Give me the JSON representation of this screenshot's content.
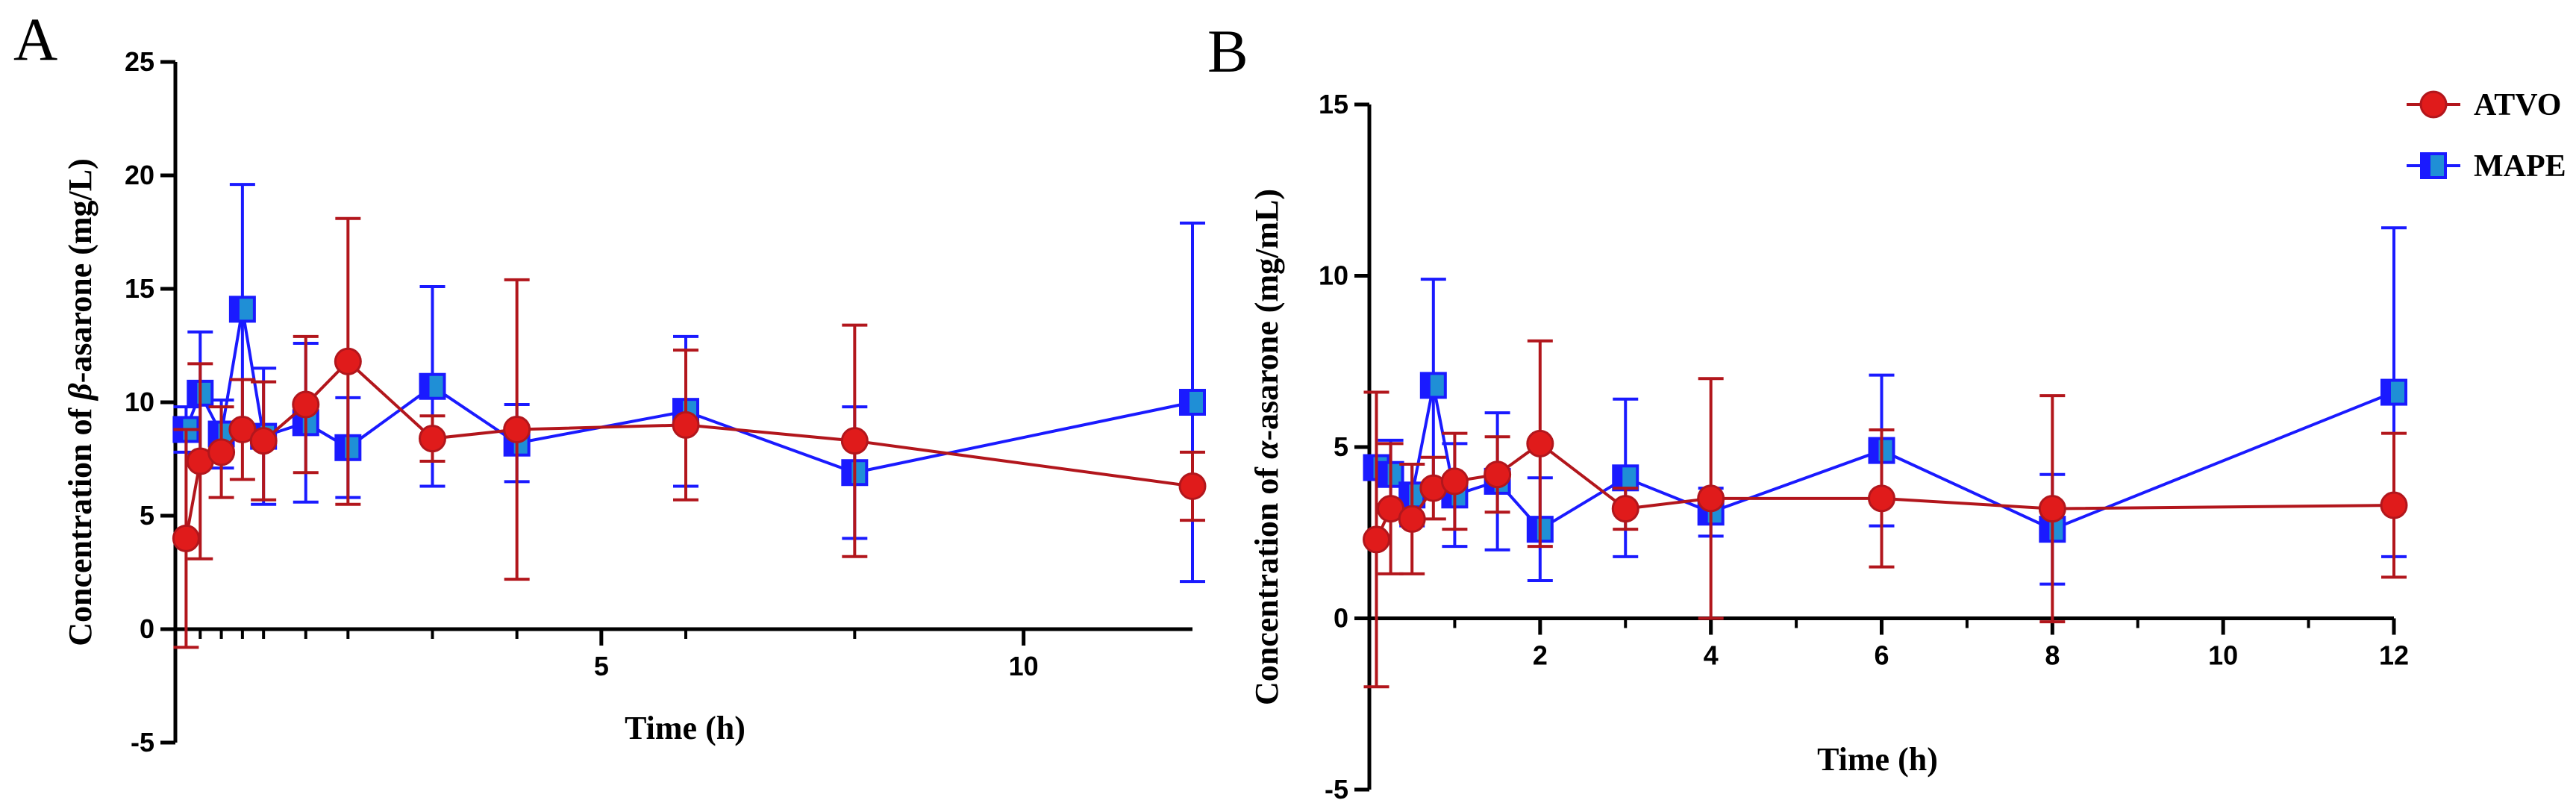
{
  "colors": {
    "atvo_line": "#b2161c",
    "atvo_marker": "#e01b1b",
    "mape_line": "#1a1aff",
    "mape_fill": "#1f8fd6",
    "axis": "#000000"
  },
  "legend": {
    "entries": [
      "ATVO",
      "MAPE"
    ]
  },
  "chart_data": [
    {
      "type": "line",
      "panel_label": "A",
      "title": "",
      "xlabel": "Time (h)",
      "ylabel_prefix": "Concentration of ",
      "ylabel_symbol": "β",
      "ylabel_suffix": "-asarone (mg/L)",
      "xlim": [
        0,
        12
      ],
      "ylim": [
        -5,
        25
      ],
      "xticks": [
        5,
        10
      ],
      "xtick_labels": [
        "5",
        "10"
      ],
      "yticks": [
        -5,
        0,
        5,
        10,
        15,
        20,
        25
      ],
      "ytick_labels": [
        "-5",
        "0",
        "5",
        "10",
        "15",
        "20",
        "25"
      ],
      "x_minor_ticks": [
        0.25,
        0.5,
        0.75,
        1,
        1.5,
        2,
        3,
        4,
        6,
        8
      ],
      "series": [
        {
          "name": "ATVO",
          "x": [
            0.083,
            0.25,
            0.5,
            0.75,
            1,
            1.5,
            2,
            3,
            4,
            6,
            8,
            12
          ],
          "y": [
            4.0,
            7.4,
            7.8,
            8.8,
            8.3,
            9.9,
            11.8,
            8.4,
            8.8,
            9.0,
            8.3,
            6.3
          ],
          "err": [
            4.8,
            4.3,
            2.0,
            2.2,
            2.6,
            3.0,
            6.3,
            1.0,
            6.6,
            3.3,
            5.1,
            1.5
          ]
        },
        {
          "name": "MAPE",
          "x": [
            0.083,
            0.25,
            0.5,
            0.75,
            1,
            1.5,
            2,
            3,
            4,
            6,
            8,
            12
          ],
          "y": [
            8.8,
            10.4,
            8.6,
            14.1,
            8.5,
            9.1,
            8.0,
            10.7,
            8.2,
            9.6,
            6.9,
            10.0
          ],
          "err": [
            1.0,
            2.7,
            1.5,
            5.5,
            3.0,
            3.5,
            2.2,
            4.4,
            1.7,
            3.3,
            2.9,
            7.9
          ]
        }
      ]
    },
    {
      "type": "line",
      "panel_label": "B",
      "title": "",
      "xlabel": "Time (h)",
      "ylabel_prefix": "Concentration of ",
      "ylabel_symbol": "α",
      "ylabel_suffix": "-asarone (mg/mL)",
      "xlim": [
        0,
        12
      ],
      "ylim": [
        -5,
        15
      ],
      "xticks": [
        2,
        4,
        6,
        8,
        10,
        12
      ],
      "xtick_labels": [
        "2",
        "4",
        "6",
        "8",
        "10",
        "12"
      ],
      "yticks": [
        -5,
        0,
        5,
        10,
        15
      ],
      "ytick_labels": [
        "-5",
        "0",
        "5",
        "10",
        "15"
      ],
      "x_minor_ticks": [
        1,
        3,
        5,
        7,
        9,
        11
      ],
      "series": [
        {
          "name": "ATVO",
          "x": [
            0.083,
            0.25,
            0.5,
            0.75,
            1,
            1.5,
            2,
            3,
            4,
            6,
            8,
            12
          ],
          "y": [
            2.3,
            3.2,
            2.9,
            3.8,
            4.0,
            4.2,
            5.1,
            3.2,
            3.5,
            3.5,
            3.2,
            3.3
          ],
          "err": [
            4.3,
            1.9,
            1.6,
            0.9,
            1.4,
            1.1,
            3.0,
            0.6,
            3.5,
            2.0,
            3.3,
            2.1
          ]
        },
        {
          "name": "MAPE",
          "x": [
            0.083,
            0.25,
            0.5,
            0.75,
            1,
            1.5,
            2,
            3,
            4,
            6,
            8,
            12
          ],
          "y": [
            4.4,
            4.2,
            3.6,
            6.8,
            3.6,
            4.0,
            2.6,
            4.1,
            3.1,
            4.9,
            2.6,
            6.6
          ],
          "err": [
            2.2,
            1.0,
            0.9,
            3.1,
            1.5,
            2.0,
            1.5,
            2.3,
            0.7,
            2.2,
            1.6,
            4.8
          ]
        }
      ]
    }
  ]
}
